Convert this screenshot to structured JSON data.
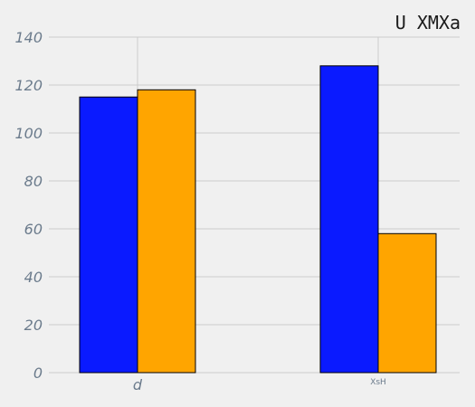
{
  "chart_data": {
    "type": "bar",
    "title": "U XMXa",
    "categories": [
      "d",
      "XsH"
    ],
    "series": [
      {
        "values": [
          115,
          128
        ]
      },
      {
        "values": [
          118,
          58
        ]
      }
    ],
    "ylim": [
      0,
      140
    ],
    "yticks": [
      0,
      20,
      40,
      60,
      80,
      100,
      120,
      140
    ],
    "grid": true,
    "colors": [
      "#0a1aff",
      "#ffa500"
    ]
  }
}
